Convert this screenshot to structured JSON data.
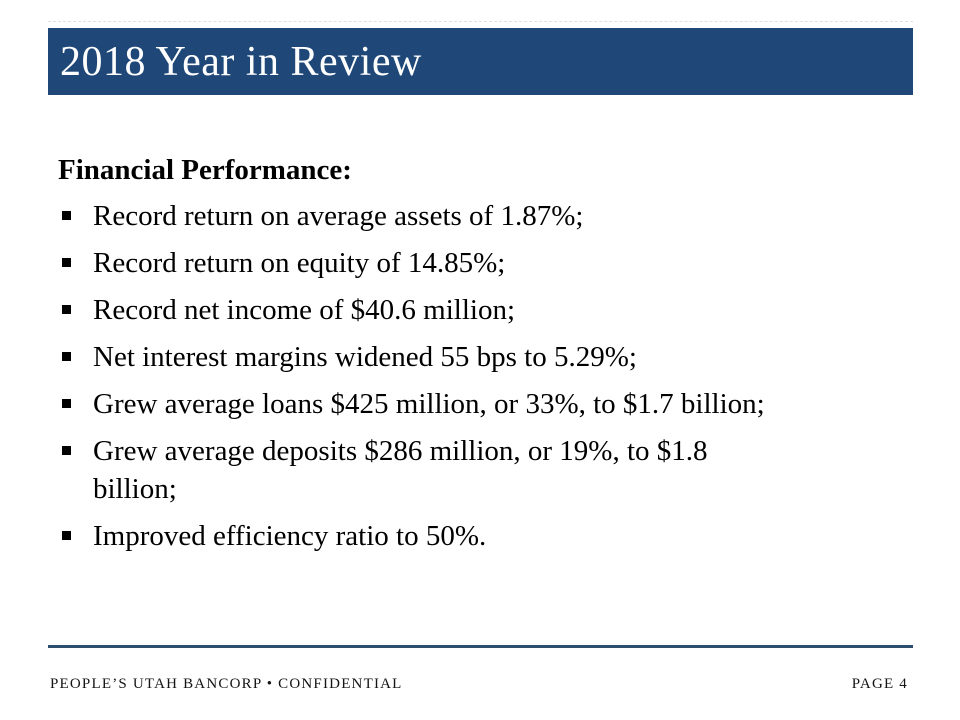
{
  "slide": {
    "title": "2018 Year in Review",
    "body": {
      "heading": "Financial Performance:",
      "bullets": [
        "Record return on average assets of 1.87%;",
        "Record return on equity of 14.85%;",
        "Record net income of $40.6 million;",
        "Net interest margins widened 55 bps to 5.29%;",
        "Grew average loans $425 million, or 33%, to $1.7 billion;",
        "Grew average deposits $286 million, or 19%, to $1.8\nbillion;",
        "Improved efficiency ratio to 50%."
      ]
    },
    "footer": {
      "left": "PEOPLE’S UTAH BANCORP • CONFIDENTIAL",
      "right": "PAGE 4"
    },
    "colors": {
      "banner": "#1F4878",
      "rule": "#2D4F6D",
      "text": "#000000",
      "title_text": "#FFFFFF"
    }
  }
}
